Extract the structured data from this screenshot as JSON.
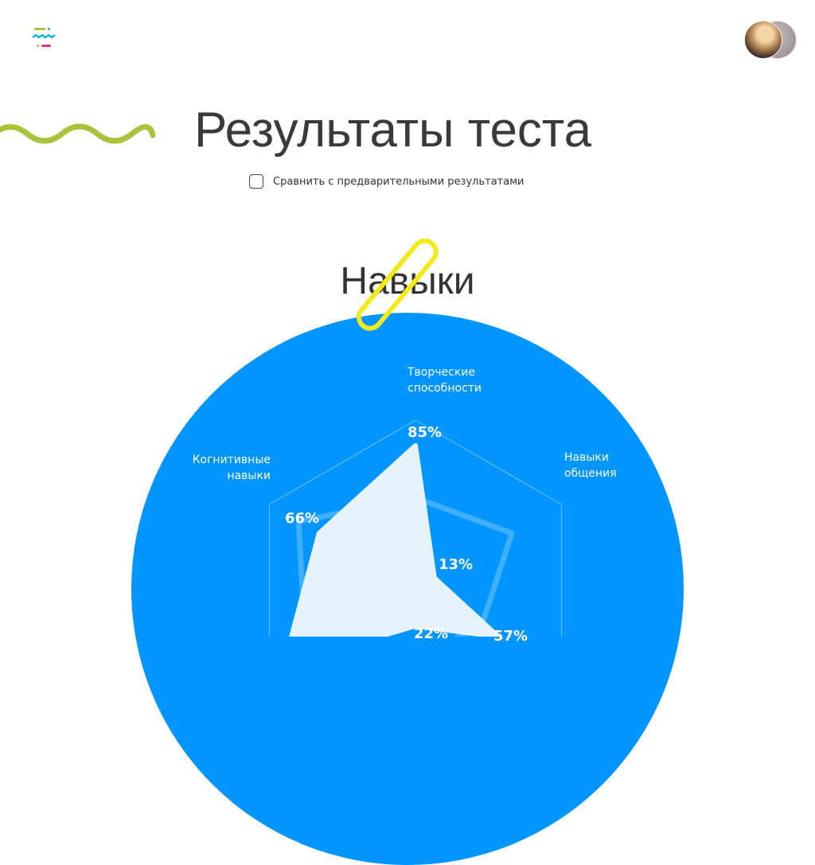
{
  "header": {
    "logo_icon": "brand-logo-icon",
    "avatar_icon": "user-avatars"
  },
  "page": {
    "title": "Результаты теста",
    "compare_label": "Сравнить с предварительными результатами",
    "compare_checked": false
  },
  "colors": {
    "accent_blue": "#0095ff",
    "wave_green": "#a8c43a",
    "clip_yellow": "#f2ea1a",
    "fill": "#e6f3fc"
  },
  "chart_data": {
    "type": "radar",
    "title": "Навыки",
    "axes": [
      "Творческие способности",
      "Навыки общения",
      "",
      "",
      "",
      "Когнитивные навыки"
    ],
    "max": 100,
    "series": [
      {
        "values": [
          85,
          13,
          57,
          22,
          90,
          66
        ],
        "labels": [
          "85%",
          "13%",
          "57%",
          "22%",
          "",
          "66%"
        ],
        "style": "filled"
      },
      {
        "values": [
          54,
          66,
          45,
          40,
          75,
          80
        ],
        "style": "outline"
      }
    ]
  }
}
